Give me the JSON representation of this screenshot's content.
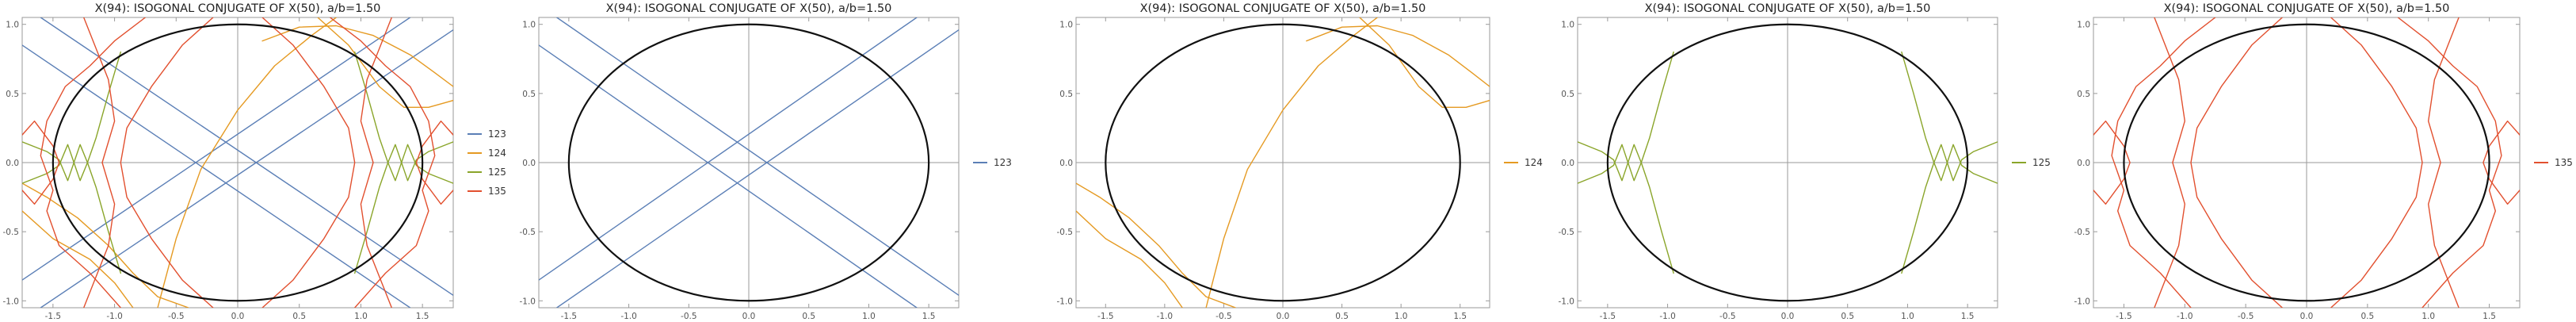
{
  "colors": {
    "ellipse": "#111111",
    "axes": "#9a9a9a",
    "frame": "#9a9a9a",
    "series": {
      "123": "#5b7fb6",
      "124": "#e59a22",
      "125": "#8aa52a",
      "135": "#e2502f"
    }
  },
  "chart_data": [
    {
      "type": "line",
      "title": "X(94): ISOGONAL CONJUGATE OF X(50), a/b=1.50",
      "xlim": [
        -1.75,
        1.75
      ],
      "ylim": [
        -1.05,
        1.05
      ],
      "xticks": [
        "-1.5",
        "-1.0",
        "-0.5",
        "0.0",
        "0.5",
        "1.0",
        "1.5"
      ],
      "yticks": [
        "-1.0",
        "-0.5",
        "0.0",
        "0.5",
        "1.0"
      ],
      "xtick_values": [
        -1.5,
        -1.0,
        -0.5,
        0.0,
        0.5,
        1.0,
        1.5
      ],
      "ytick_values": [
        -1.0,
        -0.5,
        0.0,
        0.5,
        1.0
      ],
      "ellipse": {
        "a": 1.5,
        "b": 1.0
      },
      "legend": [
        "123",
        "124",
        "125",
        "135"
      ],
      "legend_position": "right",
      "series": [
        "123",
        "124",
        "125",
        "135"
      ]
    },
    {
      "type": "line",
      "title": "X(94): ISOGONAL CONJUGATE OF X(50), a/b=1.50",
      "xlim": [
        -1.75,
        1.75
      ],
      "ylim": [
        -1.05,
        1.05
      ],
      "xticks": [
        "-1.5",
        "-1.0",
        "-0.5",
        "0.0",
        "0.5",
        "1.0",
        "1.5"
      ],
      "yticks": [
        "-1.0",
        "-0.5",
        "0.0",
        "0.5",
        "1.0"
      ],
      "xtick_values": [
        -1.5,
        -1.0,
        -0.5,
        0.0,
        0.5,
        1.0,
        1.5
      ],
      "ytick_values": [
        -1.0,
        -0.5,
        0.0,
        0.5,
        1.0
      ],
      "ellipse": {
        "a": 1.5,
        "b": 1.0
      },
      "legend": [
        "123"
      ],
      "legend_position": "right",
      "series": [
        "123"
      ]
    },
    {
      "type": "line",
      "title": "X(94): ISOGONAL CONJUGATE OF X(50), a/b=1.50",
      "xlim": [
        -1.75,
        1.75
      ],
      "ylim": [
        -1.05,
        1.05
      ],
      "xticks": [
        "-1.5",
        "-1.0",
        "-0.5",
        "0.0",
        "0.5",
        "1.0",
        "1.5"
      ],
      "yticks": [
        "-1.0",
        "-0.5",
        "0.0",
        "0.5",
        "1.0"
      ],
      "xtick_values": [
        -1.5,
        -1.0,
        -0.5,
        0.0,
        0.5,
        1.0,
        1.5
      ],
      "ytick_values": [
        -1.0,
        -0.5,
        0.0,
        0.5,
        1.0
      ],
      "ellipse": {
        "a": 1.5,
        "b": 1.0
      },
      "legend": [
        "124"
      ],
      "legend_position": "right",
      "series": [
        "124"
      ]
    },
    {
      "type": "line",
      "title": "X(94): ISOGONAL CONJUGATE OF X(50), a/b=1.50",
      "xlim": [
        -1.75,
        1.75
      ],
      "ylim": [
        -1.05,
        1.05
      ],
      "xticks": [
        "-1.5",
        "-1.0",
        "-0.5",
        "0.0",
        "0.5",
        "1.0",
        "1.5"
      ],
      "yticks": [
        "-1.0",
        "-0.5",
        "0.0",
        "0.5",
        "1.0"
      ],
      "xtick_values": [
        -1.5,
        -1.0,
        -0.5,
        0.0,
        0.5,
        1.0,
        1.5
      ],
      "ytick_values": [
        -1.0,
        -0.5,
        0.0,
        0.5,
        1.0
      ],
      "ellipse": {
        "a": 1.5,
        "b": 1.0
      },
      "legend": [
        "125"
      ],
      "legend_position": "right",
      "series": [
        "125"
      ]
    },
    {
      "type": "line",
      "title": "X(94): ISOGONAL CONJUGATE OF X(50), a/b=1.50",
      "xlim": [
        -1.75,
        1.75
      ],
      "ylim": [
        -1.05,
        1.05
      ],
      "xticks": [
        "-1.5",
        "-1.0",
        "-0.5",
        "0.0",
        "0.5",
        "1.0",
        "1.5"
      ],
      "yticks": [
        "-1.0",
        "-0.5",
        "0.0",
        "0.5",
        "1.0"
      ],
      "xtick_values": [
        -1.5,
        -1.0,
        -0.5,
        0.0,
        0.5,
        1.0,
        1.5
      ],
      "ytick_values": [
        -1.0,
        -0.5,
        0.0,
        0.5,
        1.0
      ],
      "ellipse": {
        "a": 1.5,
        "b": 1.0
      },
      "legend": [
        "135"
      ],
      "legend_position": "right",
      "series": [
        "135"
      ]
    }
  ],
  "series_curves": {
    "123": [
      [
        [
          -1.75,
          0.85
        ],
        [
          1.4,
          -1.05
        ]
      ],
      [
        [
          -1.75,
          -0.85
        ],
        [
          1.4,
          1.05
        ]
      ],
      [
        [
          -1.6,
          -1.05
        ],
        [
          1.75,
          0.96
        ]
      ],
      [
        [
          -1.6,
          1.05
        ],
        [
          1.75,
          -0.96
        ]
      ]
    ],
    "124": [
      [
        [
          -0.65,
          -1.05
        ],
        [
          -0.5,
          -0.55
        ],
        [
          -0.3,
          -0.05
        ],
        [
          0.0,
          0.38
        ],
        [
          0.3,
          0.7
        ],
        [
          0.6,
          0.92
        ],
        [
          0.8,
          1.05
        ]
      ],
      [
        [
          -1.75,
          -0.35
        ],
        [
          -1.5,
          -0.55
        ],
        [
          -1.2,
          -0.7
        ],
        [
          -1.0,
          -0.87
        ],
        [
          -0.85,
          -1.05
        ]
      ],
      [
        [
          -1.75,
          -0.15
        ],
        [
          -1.55,
          -0.25
        ],
        [
          -1.3,
          -0.4
        ],
        [
          -1.05,
          -0.6
        ],
        [
          -0.85,
          -0.8
        ],
        [
          -0.65,
          -0.97
        ],
        [
          -0.4,
          -1.05
        ]
      ],
      [
        [
          0.65,
          1.05
        ],
        [
          0.9,
          0.85
        ],
        [
          1.15,
          0.55
        ],
        [
          1.35,
          0.4
        ],
        [
          1.55,
          0.4
        ],
        [
          1.75,
          0.45
        ]
      ],
      [
        [
          0.2,
          0.88
        ],
        [
          0.5,
          0.98
        ],
        [
          0.8,
          0.99
        ],
        [
          1.1,
          0.92
        ],
        [
          1.4,
          0.78
        ],
        [
          1.6,
          0.65
        ],
        [
          1.75,
          0.55
        ]
      ]
    ],
    "125": [
      [
        [
          -1.75,
          0.15
        ],
        [
          -1.55,
          0.08
        ],
        [
          -1.45,
          0.02
        ],
        [
          -1.38,
          -0.13
        ],
        [
          -1.33,
          0.0
        ],
        [
          -1.28,
          0.13
        ],
        [
          -1.22,
          0.0
        ],
        [
          -1.15,
          -0.18
        ],
        [
          -1.05,
          -0.5
        ],
        [
          -0.95,
          -0.8
        ]
      ],
      [
        [
          -1.75,
          -0.15
        ],
        [
          -1.55,
          -0.08
        ],
        [
          -1.45,
          -0.02
        ],
        [
          -1.38,
          0.13
        ],
        [
          -1.33,
          0.0
        ],
        [
          -1.28,
          -0.13
        ],
        [
          -1.22,
          0.0
        ],
        [
          -1.15,
          0.18
        ],
        [
          -1.05,
          0.5
        ],
        [
          -0.95,
          0.8
        ]
      ],
      [
        [
          1.75,
          0.15
        ],
        [
          1.55,
          0.08
        ],
        [
          1.45,
          0.02
        ],
        [
          1.38,
          -0.13
        ],
        [
          1.33,
          0.0
        ],
        [
          1.28,
          0.13
        ],
        [
          1.22,
          0.0
        ],
        [
          1.15,
          -0.18
        ],
        [
          1.05,
          -0.5
        ],
        [
          0.95,
          -0.8
        ]
      ],
      [
        [
          1.75,
          -0.15
        ],
        [
          1.55,
          -0.08
        ],
        [
          1.45,
          -0.02
        ],
        [
          1.38,
          0.13
        ],
        [
          1.33,
          0.0
        ],
        [
          1.28,
          -0.13
        ],
        [
          1.22,
          0.0
        ],
        [
          1.15,
          0.18
        ],
        [
          1.05,
          0.5
        ],
        [
          0.95,
          0.8
        ]
      ]
    ],
    "135": [
      [
        [
          -0.75,
          1.05
        ],
        [
          -1.0,
          0.88
        ],
        [
          -1.2,
          0.7
        ],
        [
          -1.4,
          0.55
        ],
        [
          -1.55,
          0.3
        ],
        [
          -1.6,
          0.05
        ],
        [
          -1.5,
          -0.2
        ],
        [
          -1.55,
          -0.35
        ],
        [
          -1.45,
          -0.6
        ],
        [
          -1.2,
          -0.8
        ],
        [
          -0.95,
          -1.05
        ]
      ],
      [
        [
          0.75,
          1.05
        ],
        [
          1.0,
          0.88
        ],
        [
          1.2,
          0.7
        ],
        [
          1.4,
          0.55
        ],
        [
          1.55,
          0.3
        ],
        [
          1.6,
          0.05
        ],
        [
          1.5,
          -0.2
        ],
        [
          1.55,
          -0.35
        ],
        [
          1.45,
          -0.6
        ],
        [
          1.2,
          -0.8
        ],
        [
          0.95,
          -1.05
        ]
      ],
      [
        [
          -0.2,
          1.05
        ],
        [
          -0.45,
          0.85
        ],
        [
          -0.7,
          0.55
        ],
        [
          -0.9,
          0.25
        ],
        [
          -0.95,
          0.0
        ],
        [
          -0.9,
          -0.25
        ],
        [
          -0.7,
          -0.55
        ],
        [
          -0.45,
          -0.85
        ],
        [
          -0.2,
          -1.05
        ]
      ],
      [
        [
          0.2,
          1.05
        ],
        [
          0.45,
          0.85
        ],
        [
          0.7,
          0.55
        ],
        [
          0.9,
          0.25
        ],
        [
          0.95,
          0.0
        ],
        [
          0.9,
          -0.25
        ],
        [
          0.7,
          -0.55
        ],
        [
          0.45,
          -0.85
        ],
        [
          0.2,
          -1.05
        ]
      ],
      [
        [
          -1.75,
          0.2
        ],
        [
          -1.65,
          0.3
        ],
        [
          -1.5,
          0.12
        ],
        [
          -1.45,
          0.0
        ],
        [
          -1.5,
          -0.12
        ],
        [
          -1.65,
          -0.3
        ],
        [
          -1.75,
          -0.2
        ]
      ],
      [
        [
          1.75,
          0.2
        ],
        [
          1.65,
          0.3
        ],
        [
          1.5,
          0.12
        ],
        [
          1.45,
          0.0
        ],
        [
          1.5,
          -0.12
        ],
        [
          1.65,
          -0.3
        ],
        [
          1.75,
          -0.2
        ]
      ],
      [
        [
          -1.25,
          1.05
        ],
        [
          -1.05,
          0.6
        ],
        [
          -1.0,
          0.3
        ],
        [
          -1.1,
          0.0
        ],
        [
          -1.0,
          -0.3
        ],
        [
          -1.05,
          -0.6
        ],
        [
          -1.25,
          -1.05
        ]
      ],
      [
        [
          1.25,
          1.05
        ],
        [
          1.05,
          0.6
        ],
        [
          1.0,
          0.3
        ],
        [
          1.1,
          0.0
        ],
        [
          1.0,
          -0.3
        ],
        [
          1.05,
          -0.6
        ],
        [
          1.25,
          -1.05
        ]
      ]
    ]
  }
}
